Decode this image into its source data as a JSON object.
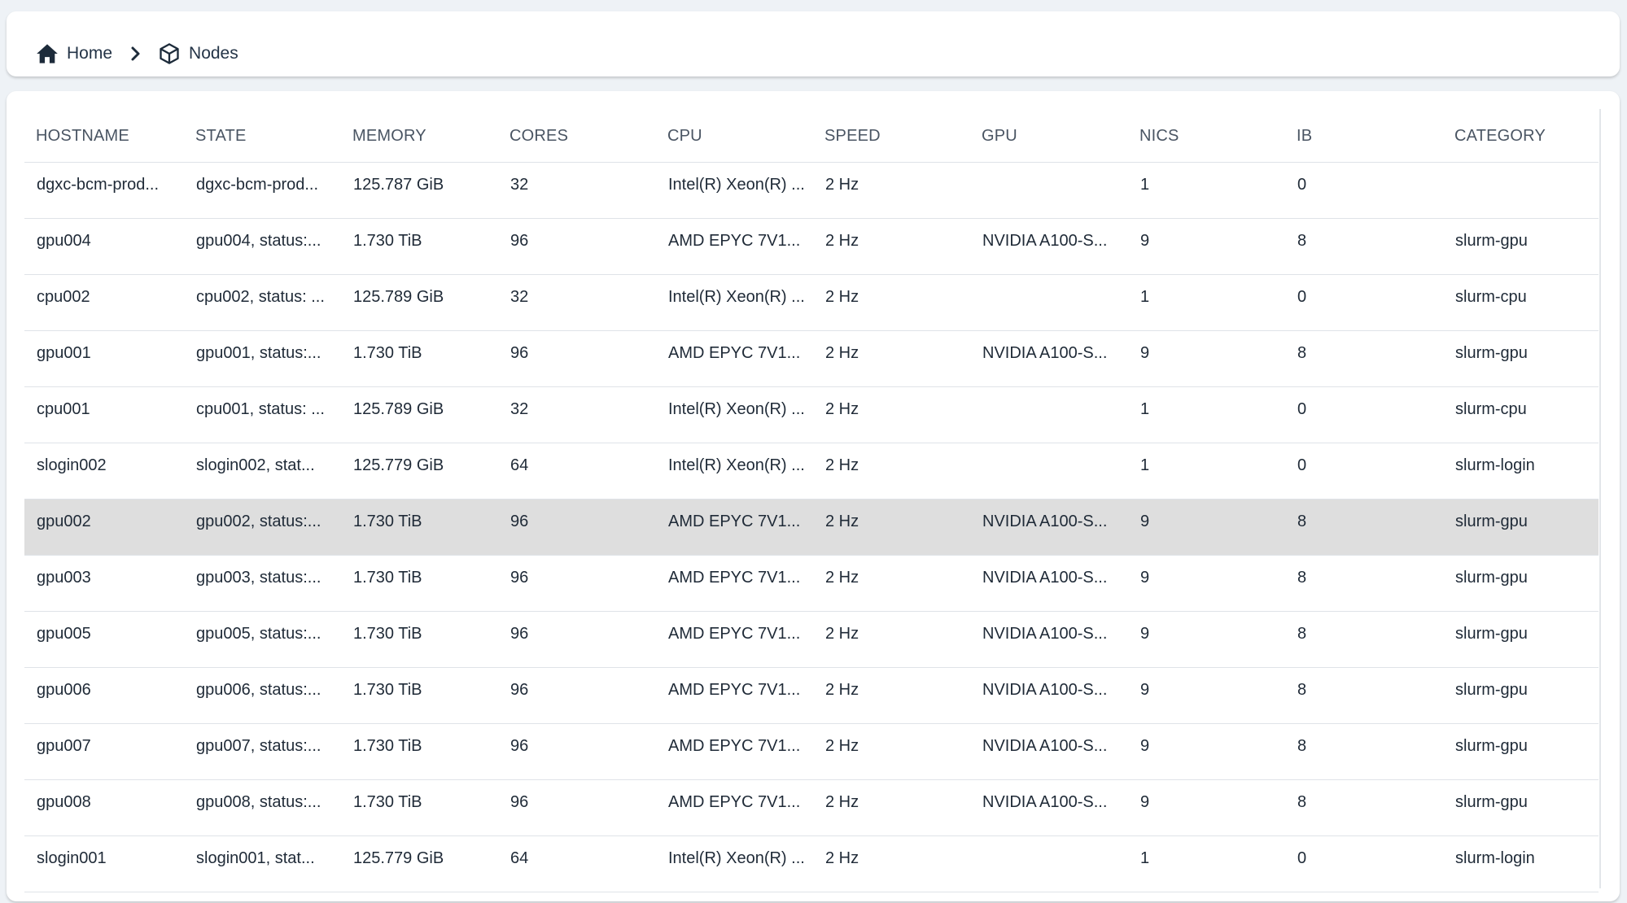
{
  "breadcrumb": {
    "home_label": "Home",
    "nodes_label": "Nodes",
    "home_icon": "home-icon",
    "separator_icon": "chevron-right-icon",
    "nodes_icon": "cube-icon"
  },
  "table": {
    "columns": [
      "HOSTNAME",
      "STATE",
      "MEMORY",
      "CORES",
      "CPU",
      "SPEED",
      "GPU",
      "NICS",
      "IB",
      "CATEGORY"
    ],
    "highlighted_row_index": 6,
    "highlight_color": "#dedede",
    "rows": [
      [
        "dgxc-bcm-prod...",
        "dgxc-bcm-prod...",
        "125.787 GiB",
        "32",
        "Intel(R) Xeon(R) ...",
        "2 Hz",
        "",
        "1",
        "0",
        ""
      ],
      [
        "gpu004",
        "gpu004, status:...",
        "1.730 TiB",
        "96",
        "AMD EPYC 7V1...",
        "2 Hz",
        "NVIDIA A100-S...",
        "9",
        "8",
        "slurm-gpu"
      ],
      [
        "cpu002",
        "cpu002, status: ...",
        "125.789 GiB",
        "32",
        "Intel(R) Xeon(R) ...",
        "2 Hz",
        "",
        "1",
        "0",
        "slurm-cpu"
      ],
      [
        "gpu001",
        "gpu001, status:...",
        "1.730 TiB",
        "96",
        "AMD EPYC 7V1...",
        "2 Hz",
        "NVIDIA A100-S...",
        "9",
        "8",
        "slurm-gpu"
      ],
      [
        "cpu001",
        "cpu001, status: ...",
        "125.789 GiB",
        "32",
        "Intel(R) Xeon(R) ...",
        "2 Hz",
        "",
        "1",
        "0",
        "slurm-cpu"
      ],
      [
        "slogin002",
        "slogin002, stat...",
        "125.779 GiB",
        "64",
        "Intel(R) Xeon(R) ...",
        "2 Hz",
        "",
        "1",
        "0",
        "slurm-login"
      ],
      [
        "gpu002",
        "gpu002, status:...",
        "1.730 TiB",
        "96",
        "AMD EPYC 7V1...",
        "2 Hz",
        "NVIDIA A100-S...",
        "9",
        "8",
        "slurm-gpu"
      ],
      [
        "gpu003",
        "gpu003, status:...",
        "1.730 TiB",
        "96",
        "AMD EPYC 7V1...",
        "2 Hz",
        "NVIDIA A100-S...",
        "9",
        "8",
        "slurm-gpu"
      ],
      [
        "gpu005",
        "gpu005, status:...",
        "1.730 TiB",
        "96",
        "AMD EPYC 7V1...",
        "2 Hz",
        "NVIDIA A100-S...",
        "9",
        "8",
        "slurm-gpu"
      ],
      [
        "gpu006",
        "gpu006, status:...",
        "1.730 TiB",
        "96",
        "AMD EPYC 7V1...",
        "2 Hz",
        "NVIDIA A100-S...",
        "9",
        "8",
        "slurm-gpu"
      ],
      [
        "gpu007",
        "gpu007, status:...",
        "1.730 TiB",
        "96",
        "AMD EPYC 7V1...",
        "2 Hz",
        "NVIDIA A100-S...",
        "9",
        "8",
        "slurm-gpu"
      ],
      [
        "gpu008",
        "gpu008, status:...",
        "1.730 TiB",
        "96",
        "AMD EPYC 7V1...",
        "2 Hz",
        "NVIDIA A100-S...",
        "9",
        "8",
        "slurm-gpu"
      ],
      [
        "slogin001",
        "slogin001, stat...",
        "125.779 GiB",
        "64",
        "Intel(R) Xeon(R) ...",
        "2 Hz",
        "",
        "1",
        "0",
        "slurm-login"
      ]
    ]
  }
}
